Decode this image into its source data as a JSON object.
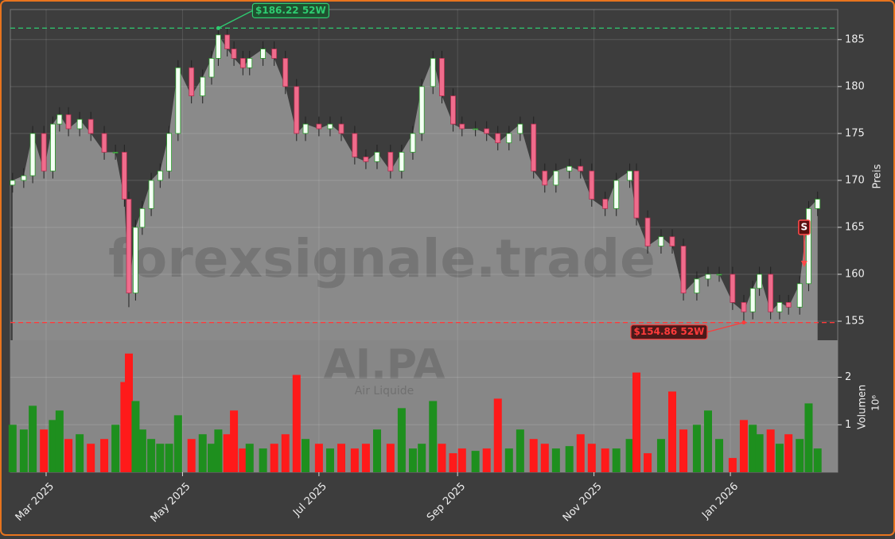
{
  "chart_data": {
    "type": "candlestick",
    "watermark": "forexsignale.trade",
    "ticker": "AI.PA",
    "company": "Air Liquide",
    "y_label": "Preis",
    "volume_label": "Volumen",
    "volume_unit": "10⁶",
    "x": [
      1,
      6,
      10,
      15,
      19,
      22,
      26,
      31,
      36,
      42,
      47,
      51,
      53,
      56,
      59,
      63,
      67,
      71,
      75,
      81,
      86,
      90,
      93,
      97,
      100,
      104,
      107,
      113,
      118,
      123,
      128,
      132,
      138,
      143,
      148,
      154,
      159,
      164,
      170,
      175,
      180,
      184,
      189,
      193,
      198,
      202,
      208,
      213,
      218,
      223,
      228,
      234,
      239,
      244,
      250,
      255,
      260,
      266,
      271,
      277,
      280,
      285,
      291,
      296,
      301,
      307,
      312,
      317,
      323,
      328,
      332,
      335,
      340,
      344,
      348,
      353,
      357,
      361
    ],
    "open": [
      169.5,
      170,
      170.5,
      175,
      171,
      176,
      177,
      175.5,
      176.5,
      175,
      173,
      173,
      168,
      158,
      165,
      167,
      170,
      171,
      175,
      182,
      179,
      181,
      183,
      185.5,
      184,
      183,
      182,
      183,
      184,
      183,
      180,
      175,
      176,
      175.5,
      176,
      175,
      172.5,
      172,
      173,
      171,
      173,
      175,
      180,
      183,
      179,
      176,
      175.5,
      175.5,
      175,
      174,
      175,
      176,
      171,
      169.5,
      171,
      171.5,
      171,
      168,
      167,
      170,
      171,
      166,
      163,
      164,
      163,
      158,
      159.5,
      160,
      160,
      157,
      156,
      158.5,
      160,
      156,
      157,
      156.5,
      159,
      167
    ],
    "high": [
      170.8,
      171.3,
      175.8,
      175.8,
      176.8,
      177.8,
      177.8,
      177.3,
      177.3,
      175.8,
      173.8,
      173.8,
      168.8,
      165.8,
      167.8,
      170.8,
      171.8,
      175.8,
      182.8,
      182.8,
      181.8,
      183.8,
      186.2,
      186.2,
      184.8,
      183.8,
      183.8,
      184.8,
      184.8,
      183.8,
      180.8,
      176.8,
      176.8,
      176.8,
      176.8,
      175.8,
      173.3,
      173.8,
      173.8,
      173.8,
      175.8,
      180.8,
      183.8,
      183.8,
      179.8,
      176.8,
      176.3,
      176.3,
      175.8,
      175.8,
      176.8,
      176.8,
      171.8,
      171.8,
      172.3,
      172.3,
      171.8,
      168.8,
      170.8,
      171.8,
      171.8,
      166.8,
      164.8,
      164.8,
      163.8,
      160.3,
      160.8,
      160.8,
      160.8,
      157.8,
      159.3,
      160.8,
      160.8,
      157.8,
      157.8,
      159.8,
      167.8,
      168.8
    ],
    "low": [
      168.7,
      169.2,
      169.7,
      170.2,
      170.2,
      175.2,
      174.7,
      174.7,
      174.2,
      172.2,
      172.2,
      167.2,
      156.5,
      157.2,
      164.2,
      166.2,
      169.2,
      170.2,
      174.2,
      178.2,
      178.2,
      180.2,
      182.2,
      183.2,
      182.2,
      181.2,
      181.2,
      182.2,
      182.2,
      179.2,
      174.2,
      174.2,
      174.7,
      174.7,
      174.2,
      171.7,
      171.2,
      171.2,
      170.2,
      170.2,
      172.2,
      174.2,
      179.2,
      178.2,
      175.2,
      174.7,
      174.7,
      174.2,
      173.2,
      173.2,
      174.2,
      170.2,
      168.7,
      168.7,
      170.2,
      170.2,
      167.2,
      166.2,
      166.2,
      169.2,
      165.2,
      162.2,
      162.2,
      162.2,
      157.2,
      157.2,
      158.7,
      159.2,
      156.2,
      154.86,
      155.2,
      157.7,
      155.2,
      155.2,
      155.7,
      155.7,
      158.2,
      166.2
    ],
    "close": [
      170,
      170.5,
      175,
      171,
      176,
      177,
      175.5,
      176.5,
      175,
      173,
      173,
      168,
      158,
      165,
      167,
      170,
      171,
      175,
      182,
      179,
      181,
      183,
      185.5,
      184,
      183,
      182,
      183,
      184,
      183,
      180,
      175,
      176,
      175.5,
      176,
      175,
      172.5,
      172,
      173,
      171,
      173,
      175,
      180,
      183,
      179,
      176,
      175.5,
      175.5,
      175,
      174,
      175,
      176,
      171,
      169.5,
      171,
      171.5,
      171,
      168,
      167,
      170,
      171,
      166,
      163,
      164,
      163,
      158,
      159.5,
      160,
      160,
      157,
      156,
      158.5,
      160,
      156,
      157,
      156.5,
      159,
      167,
      168
    ],
    "volume": [
      1.0,
      0.9,
      1.4,
      0.9,
      1.1,
      1.3,
      0.7,
      0.8,
      0.6,
      0.7,
      1.0,
      1.9,
      2.5,
      1.5,
      0.9,
      0.7,
      0.6,
      0.6,
      1.2,
      0.7,
      0.8,
      0.6,
      0.9,
      0.8,
      1.3,
      0.5,
      0.6,
      0.5,
      0.6,
      0.8,
      2.05,
      0.7,
      0.6,
      0.5,
      0.6,
      0.5,
      0.6,
      0.9,
      0.6,
      1.35,
      0.5,
      0.6,
      1.5,
      0.6,
      0.4,
      0.5,
      0.45,
      0.5,
      1.55,
      0.5,
      0.9,
      0.7,
      0.6,
      0.5,
      0.55,
      0.8,
      0.6,
      0.5,
      0.5,
      0.7,
      2.1,
      0.4,
      0.7,
      1.7,
      0.9,
      1.0,
      1.3,
      0.7,
      0.3,
      1.1,
      1.0,
      0.8,
      0.9,
      0.6,
      0.8,
      0.7,
      1.45,
      0.5
    ],
    "up_color": "#1e8f1e",
    "down_color": "#ff1a1a",
    "xlim": [
      0,
      370
    ],
    "xticks": [
      {
        "value": 16,
        "label": "Mar 2025"
      },
      {
        "value": 77,
        "label": "May 2025"
      },
      {
        "value": 138,
        "label": "Jul 2025"
      },
      {
        "value": 200,
        "label": "Sep 2025"
      },
      {
        "value": 261,
        "label": "Nov 2025"
      },
      {
        "value": 322,
        "label": "Jan 2026"
      }
    ],
    "ylim": [
      152.97,
      188.2
    ],
    "yticks": [
      155,
      160,
      165,
      170,
      175,
      180,
      185
    ],
    "volume_ylim": [
      0,
      2.78
    ],
    "volume_yticks": [
      1,
      2
    ],
    "high_line": {
      "value": 186.22,
      "label": "$186.22 52W",
      "color": "#2ecc71",
      "x": 93
    },
    "low_line": {
      "value": 154.86,
      "label": "$154.86 52W",
      "color": "#ff3b3b",
      "x": 328
    },
    "signal": {
      "label": "S",
      "x": 355,
      "y": 165
    },
    "grid": true
  }
}
